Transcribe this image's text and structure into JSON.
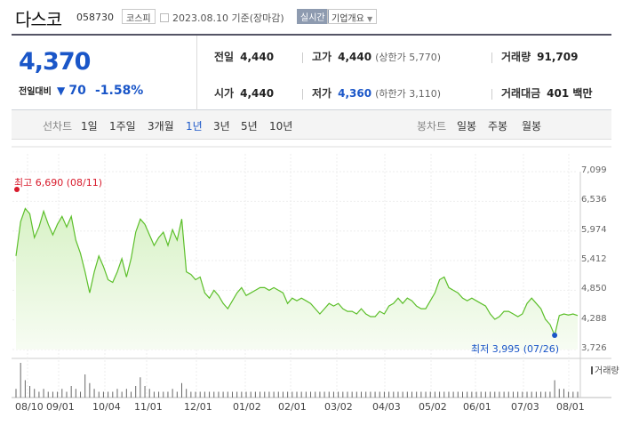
{
  "header": {
    "name": "다스코",
    "code": "058730",
    "market": "코스피",
    "date": "2023.08.10 기준(장마감)",
    "realtime": "실시간",
    "company_info": "기업개요"
  },
  "summary": {
    "price": "4,370",
    "change_label": "전일대비",
    "change_dir": "▼",
    "change_amount": "70",
    "change_pct": "-1.58%",
    "prev_close_label": "전일",
    "prev_close": "4,440",
    "open_label": "시가",
    "open": "4,440",
    "high_label": "고가",
    "high": "4,440",
    "upper_limit": "(상한가 5,770)",
    "low_label": "저가",
    "low": "4,360",
    "lower_limit": "(하한가 3,110)",
    "volume_label": "거래량",
    "volume": "91,709",
    "amount_label": "거래대금",
    "amount": "401 백만"
  },
  "tabs": {
    "line_label": "선차트",
    "periods": [
      "1일",
      "1주일",
      "3개월",
      "1년",
      "3년",
      "5년",
      "10년"
    ],
    "active_period": "1년",
    "candle_label": "봉차트",
    "candles": [
      "일봉",
      "주봉",
      "월봉"
    ]
  },
  "chart_data": {
    "type": "area",
    "y_ticks": [
      "7,099",
      "6,536",
      "5,974",
      "5,412",
      "4,850",
      "4,288",
      "3,726"
    ],
    "ylim": [
      3726,
      7099
    ],
    "x_ticks": [
      "08/10",
      "09/01",
      "10/04",
      "11/01",
      "12/01",
      "01/02",
      "02/01",
      "03/02",
      "04/03",
      "05/02",
      "06/01",
      "07/03",
      "08/01"
    ],
    "high_annotation": "최고 6,690 (08/11)",
    "low_annotation": "최저 3,995 (07/26)",
    "volume_label": "거래량",
    "colors": {
      "line": "#5cbf2a",
      "fill": "#e8f7dc",
      "high": "#d81b2c",
      "low": "#1a56c8"
    },
    "values": [
      5500,
      6150,
      6400,
      6300,
      5850,
      6050,
      6350,
      6100,
      5900,
      6100,
      6250,
      6050,
      6250,
      5800,
      5550,
      5200,
      4800,
      5200,
      5500,
      5300,
      5050,
      5000,
      5200,
      5450,
      5100,
      5450,
      5950,
      6200,
      6100,
      5900,
      5700,
      5850,
      5950,
      5700,
      6000,
      5800,
      6200,
      5200,
      5150,
      5050,
      5100,
      4800,
      4700,
      4850,
      4750,
      4600,
      4500,
      4650,
      4800,
      4900,
      4750,
      4800,
      4850,
      4900,
      4900,
      4850,
      4900,
      4850,
      4800,
      4600,
      4700,
      4650,
      4700,
      4650,
      4600,
      4500,
      4400,
      4500,
      4600,
      4550,
      4600,
      4500,
      4450,
      4450,
      4400,
      4500,
      4400,
      4350,
      4350,
      4450,
      4400,
      4550,
      4600,
      4700,
      4600,
      4700,
      4650,
      4550,
      4500,
      4500,
      4650,
      4800,
      5050,
      5100,
      4900,
      4850,
      4800,
      4700,
      4650,
      4700,
      4650,
      4600,
      4550,
      4400,
      4300,
      4350,
      4450,
      4450,
      4400,
      4350,
      4400,
      4600,
      4700,
      4600,
      4500,
      4300,
      4200,
      3995,
      4370,
      4400,
      4380,
      4400,
      4370
    ],
    "volume": [
      3,
      12,
      6,
      4,
      3,
      2,
      3,
      2,
      2,
      2,
      3,
      2,
      4,
      3,
      2,
      8,
      5,
      3,
      2,
      2,
      2,
      2,
      3,
      2,
      3,
      2,
      4,
      7,
      4,
      3,
      2,
      2,
      2,
      2,
      3,
      2,
      5,
      3,
      2,
      2,
      2,
      2,
      2,
      2,
      2,
      2,
      2,
      2,
      2,
      2,
      2,
      2,
      2,
      2,
      2,
      2,
      2,
      2,
      2,
      2,
      2,
      2,
      2,
      2,
      2,
      2,
      2,
      2,
      2,
      2,
      2,
      2,
      2,
      2,
      2,
      2,
      2,
      2,
      2,
      2,
      2,
      2,
      2,
      2,
      2,
      2,
      2,
      2,
      2,
      2,
      2,
      2,
      2,
      2,
      2,
      2,
      2,
      2,
      2,
      2,
      2,
      2,
      2,
      2,
      2,
      2,
      2,
      2,
      2,
      2,
      2,
      2,
      2,
      2,
      2,
      2,
      2,
      6,
      3,
      3,
      2,
      2,
      2
    ]
  }
}
